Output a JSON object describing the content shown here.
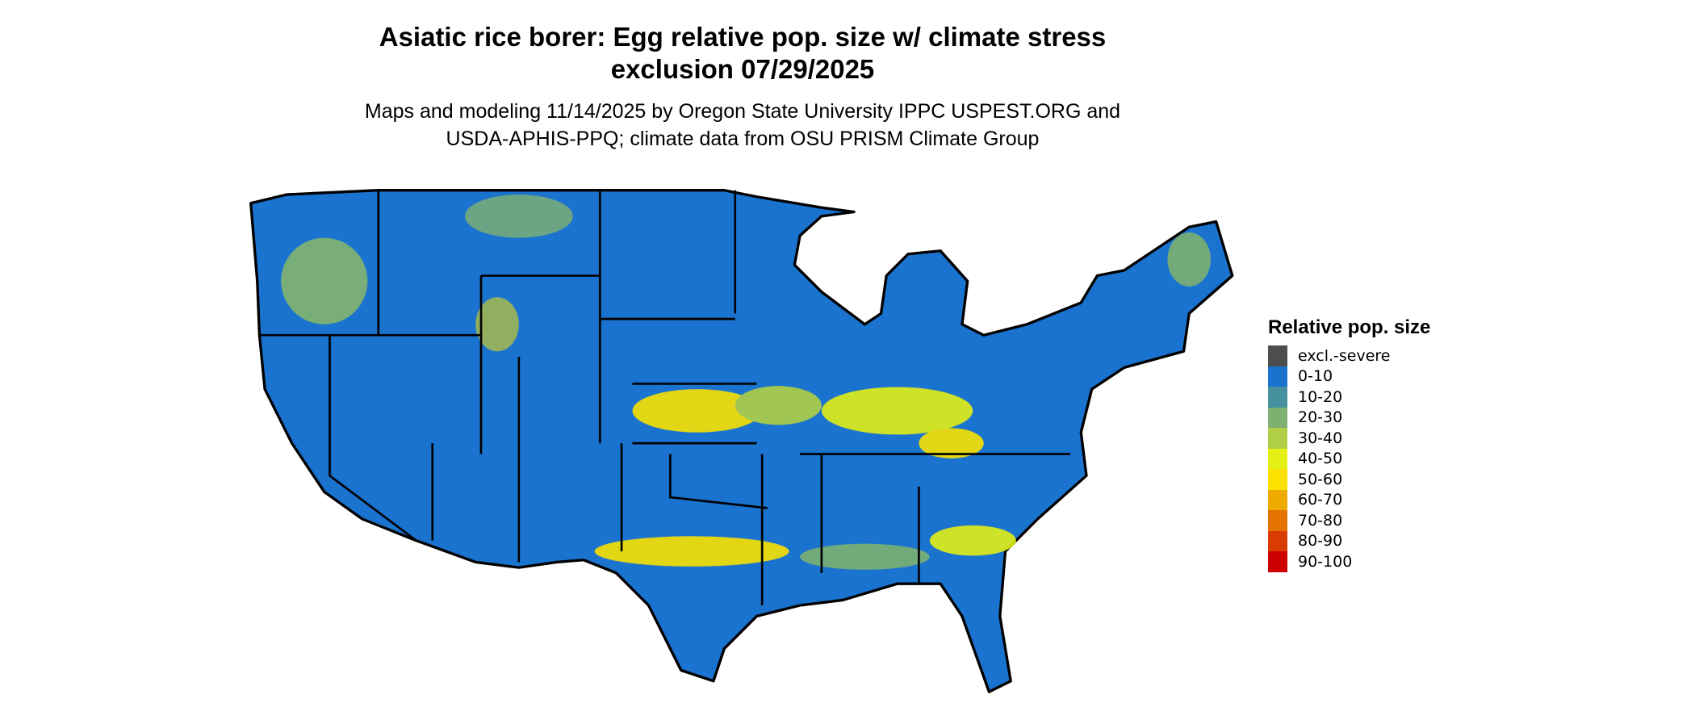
{
  "title": {
    "line1": "Asiatic rice borer: Egg relative pop. size w/ climate stress",
    "line2": "exclusion 07/29/2025"
  },
  "subtitle": {
    "line1": "Maps and modeling 11/14/2025 by Oregon State University IPPC USPEST.ORG and",
    "line2": "USDA-APHIS-PPQ; climate data from OSU PRISM Climate Group"
  },
  "legend": {
    "title": "Relative pop. size",
    "items": [
      {
        "label": "excl.-severe",
        "color": "#4d4d4d"
      },
      {
        "label": "0-10",
        "color": "#1a73cf"
      },
      {
        "label": "10-20",
        "color": "#46919e"
      },
      {
        "label": "20-30",
        "color": "#7db071"
      },
      {
        "label": "30-40",
        "color": "#b2d045"
      },
      {
        "label": "40-50",
        "color": "#e4ef16"
      },
      {
        "label": "50-60",
        "color": "#fae100"
      },
      {
        "label": "60-70",
        "color": "#efaa00"
      },
      {
        "label": "70-80",
        "color": "#e47300"
      },
      {
        "label": "80-90",
        "color": "#d93b00"
      },
      {
        "label": "90-100",
        "color": "#cc0000"
      }
    ]
  }
}
